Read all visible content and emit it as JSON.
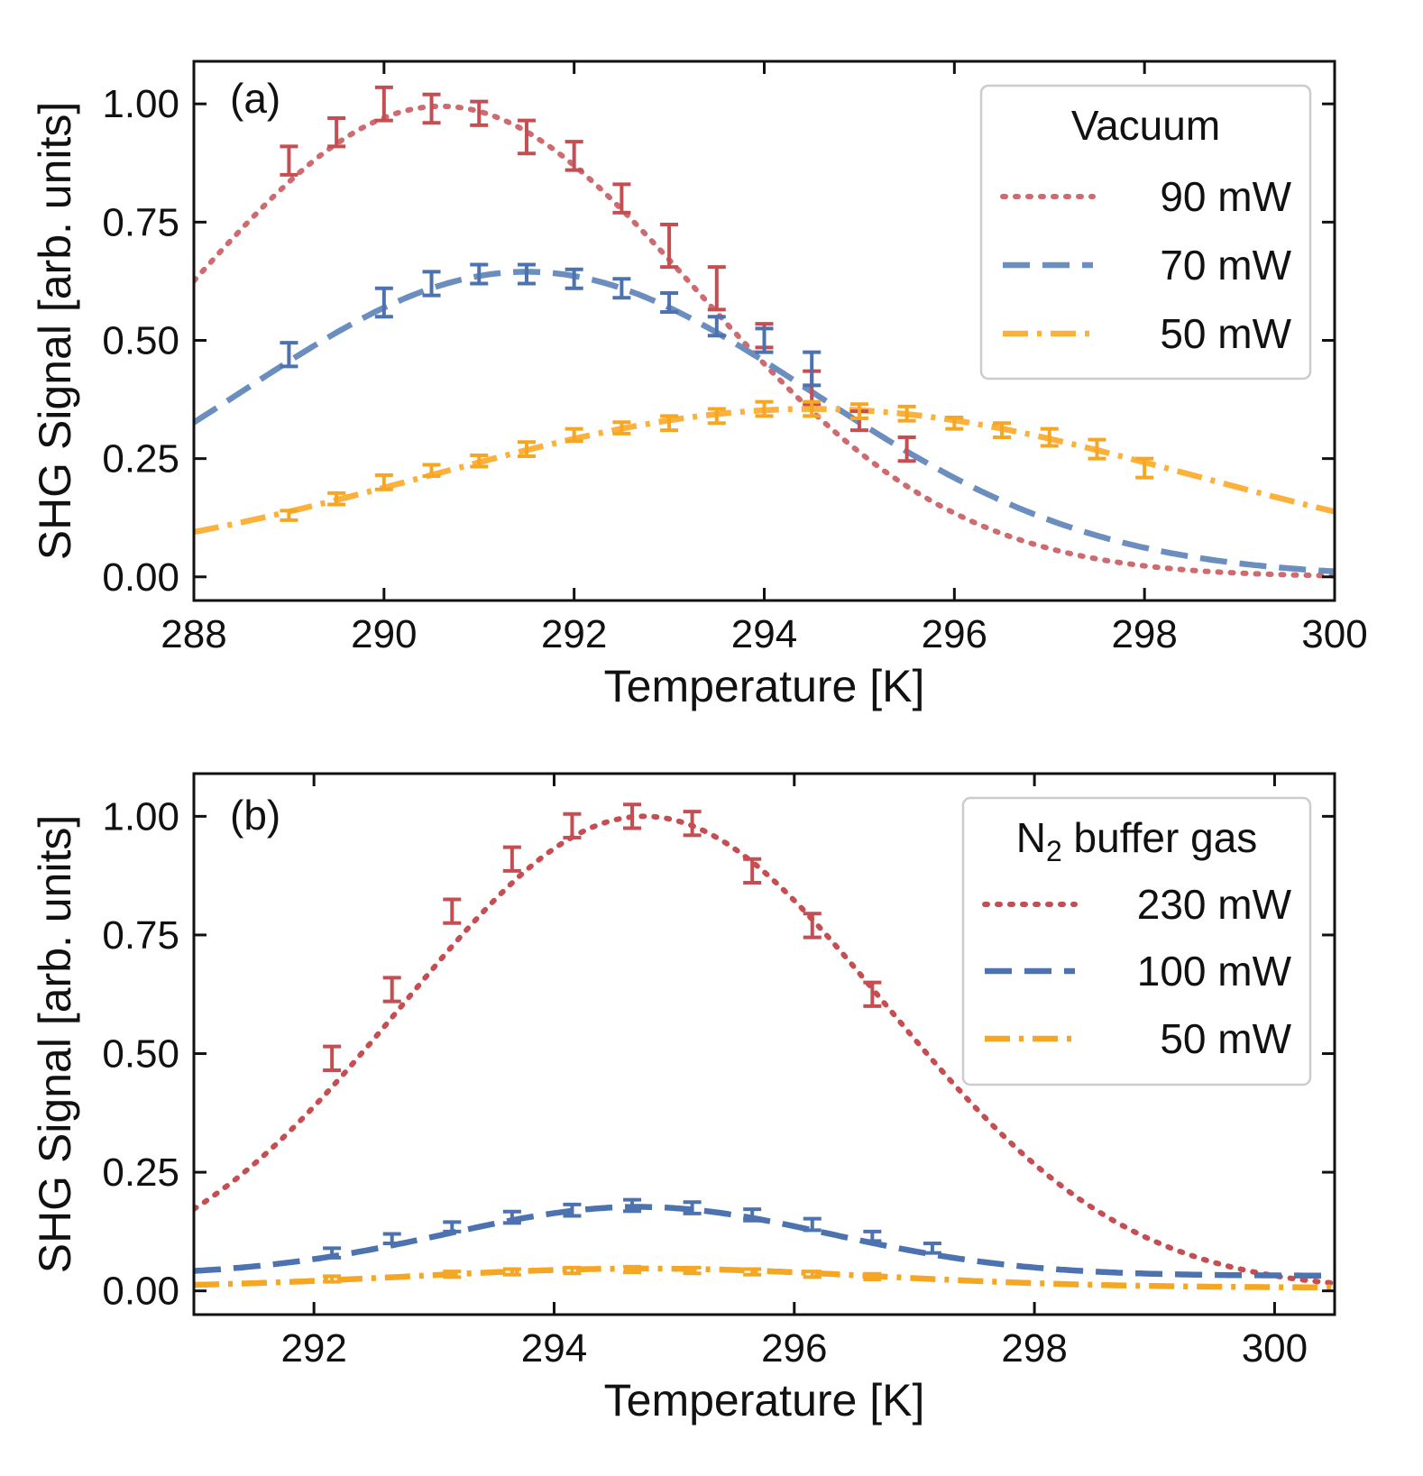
{
  "chart_data": [
    {
      "type": "line",
      "panel_label": "(a)",
      "xlabel": "Temperature [K]",
      "ylabel": "SHG Signal [arb. units]",
      "xlim": [
        288,
        300
      ],
      "ylim": [
        -0.05,
        1.09
      ],
      "xticks": [
        288,
        290,
        292,
        294,
        296,
        298,
        300
      ],
      "xtick_labels": [
        "288",
        "290",
        "292",
        "294",
        "296",
        "298",
        "300"
      ],
      "yticks": [
        0,
        0.25,
        0.5,
        0.75,
        1.0
      ],
      "ytick_labels": [
        "0.00",
        "0.25",
        "0.50",
        "0.75",
        "1.00"
      ],
      "grid": false,
      "legend": {
        "title": "Vacuum",
        "placement": "top-right"
      },
      "series": [
        {
          "name": "90 mW",
          "color": "#cd6b70",
          "style": "dotted",
          "point_color": "#c44e52",
          "fit": {
            "amplitude": 0.995,
            "center": 290.6,
            "sigma": 2.7,
            "offset": 0.0,
            "period": 17.3,
            "baseline_sine": 0.0
          },
          "points": [
            {
              "x": 289.0,
              "y": 0.88,
              "err": 0.03
            },
            {
              "x": 289.5,
              "y": 0.94,
              "err": 0.03
            },
            {
              "x": 290.0,
              "y": 1.0,
              "err": 0.035
            },
            {
              "x": 290.5,
              "y": 0.99,
              "err": 0.03
            },
            {
              "x": 291.0,
              "y": 0.98,
              "err": 0.025
            },
            {
              "x": 291.5,
              "y": 0.93,
              "err": 0.035
            },
            {
              "x": 292.0,
              "y": 0.89,
              "err": 0.03
            },
            {
              "x": 292.5,
              "y": 0.8,
              "err": 0.03
            },
            {
              "x": 293.0,
              "y": 0.7,
              "err": 0.045
            },
            {
              "x": 293.5,
              "y": 0.61,
              "err": 0.045
            },
            {
              "x": 294.0,
              "y": 0.51,
              "err": 0.025
            },
            {
              "x": 294.5,
              "y": 0.4,
              "err": 0.035
            },
            {
              "x": 295.0,
              "y": 0.33,
              "err": 0.02
            },
            {
              "x": 295.5,
              "y": 0.27,
              "err": 0.025
            }
          ]
        },
        {
          "name": "70 mW",
          "color": "#6c8ebf",
          "style": "dashed",
          "point_color": "#4c72b0",
          "fit": {
            "amplitude": 0.645,
            "center": 291.5,
            "sigma": 3.0,
            "offset": 0.0,
            "period": 17.3,
            "baseline_sine": 0.0
          },
          "points": [
            {
              "x": 289.0,
              "y": 0.47,
              "err": 0.025
            },
            {
              "x": 290.0,
              "y": 0.58,
              "err": 0.03
            },
            {
              "x": 290.5,
              "y": 0.62,
              "err": 0.025
            },
            {
              "x": 291.0,
              "y": 0.64,
              "err": 0.02
            },
            {
              "x": 291.5,
              "y": 0.64,
              "err": 0.02
            },
            {
              "x": 292.0,
              "y": 0.63,
              "err": 0.02
            },
            {
              "x": 292.5,
              "y": 0.61,
              "err": 0.02
            },
            {
              "x": 293.0,
              "y": 0.58,
              "err": 0.02
            },
            {
              "x": 293.5,
              "y": 0.53,
              "err": 0.02
            },
            {
              "x": 294.0,
              "y": 0.5,
              "err": 0.025
            },
            {
              "x": 294.5,
              "y": 0.44,
              "err": 0.035
            }
          ]
        },
        {
          "name": "50 mW",
          "color": "#fbb13c",
          "style": "dashdot",
          "point_color": "#f5a623",
          "fit": {
            "amplitude": 0.355,
            "center": 294.5,
            "sigma": 4.0,
            "offset": 0.0,
            "period": 17.3,
            "baseline_sine": 0.0
          },
          "points": [
            {
              "x": 289.0,
              "y": 0.13,
              "err": 0.01
            },
            {
              "x": 289.5,
              "y": 0.165,
              "err": 0.012
            },
            {
              "x": 290.0,
              "y": 0.2,
              "err": 0.015
            },
            {
              "x": 290.5,
              "y": 0.225,
              "err": 0.012
            },
            {
              "x": 291.0,
              "y": 0.245,
              "err": 0.012
            },
            {
              "x": 291.5,
              "y": 0.27,
              "err": 0.015
            },
            {
              "x": 292.0,
              "y": 0.3,
              "err": 0.013
            },
            {
              "x": 292.5,
              "y": 0.315,
              "err": 0.012
            },
            {
              "x": 293.0,
              "y": 0.325,
              "err": 0.015
            },
            {
              "x": 293.5,
              "y": 0.34,
              "err": 0.015
            },
            {
              "x": 294.0,
              "y": 0.355,
              "err": 0.015
            },
            {
              "x": 294.5,
              "y": 0.355,
              "err": 0.015
            },
            {
              "x": 295.0,
              "y": 0.35,
              "err": 0.015
            },
            {
              "x": 295.5,
              "y": 0.345,
              "err": 0.015
            },
            {
              "x": 296.0,
              "y": 0.325,
              "err": 0.012
            },
            {
              "x": 296.5,
              "y": 0.31,
              "err": 0.015
            },
            {
              "x": 297.0,
              "y": 0.295,
              "err": 0.018
            },
            {
              "x": 297.5,
              "y": 0.27,
              "err": 0.02
            },
            {
              "x": 298.0,
              "y": 0.23,
              "err": 0.02
            }
          ]
        }
      ]
    },
    {
      "type": "line",
      "panel_label": "(b)",
      "xlabel": "Temperature [K]",
      "ylabel": "SHG Signal [arb. units]",
      "xlim": [
        291.0,
        300.5
      ],
      "ylim": [
        -0.05,
        1.09
      ],
      "xticks": [
        292,
        294,
        296,
        298,
        300
      ],
      "xtick_labels": [
        "292",
        "294",
        "296",
        "298",
        "300"
      ],
      "yticks": [
        0,
        0.25,
        0.5,
        0.75,
        1.0
      ],
      "ytick_labels": [
        "0.00",
        "0.25",
        "0.50",
        "0.75",
        "1.00"
      ],
      "grid": false,
      "legend": {
        "title": "N",
        "title_subscript": "2",
        "title_suffix": " buffer gas",
        "placement": "top-right"
      },
      "series": [
        {
          "name": "230 mW",
          "color": "#c44e52",
          "style": "dotted",
          "point_color": "#c44e52",
          "fit": {
            "amplitude": 1.0,
            "center": 294.75,
            "sigma": 2.0,
            "offset": 0.0,
            "period": 12.0,
            "baseline_sine": 0.0
          },
          "points": [
            {
              "x": 292.15,
              "y": 0.49,
              "err": 0.025
            },
            {
              "x": 292.65,
              "y": 0.635,
              "err": 0.025
            },
            {
              "x": 293.15,
              "y": 0.8,
              "err": 0.025
            },
            {
              "x": 293.65,
              "y": 0.91,
              "err": 0.025
            },
            {
              "x": 294.15,
              "y": 0.98,
              "err": 0.025
            },
            {
              "x": 294.65,
              "y": 1.0,
              "err": 0.025
            },
            {
              "x": 295.15,
              "y": 0.985,
              "err": 0.025
            },
            {
              "x": 295.65,
              "y": 0.885,
              "err": 0.025
            },
            {
              "x": 296.15,
              "y": 0.77,
              "err": 0.025
            },
            {
              "x": 296.65,
              "y": 0.625,
              "err": 0.025
            }
          ]
        },
        {
          "name": "100 mW",
          "color": "#4c72b0",
          "style": "dashed",
          "point_color": "#4c72b0",
          "fit": {
            "amplitude": 0.145,
            "center": 294.7,
            "sigma": 1.6,
            "offset": 0.032,
            "period": 12.0,
            "baseline_sine": 0.0
          },
          "points": [
            {
              "x": 292.15,
              "y": 0.08,
              "err": 0.01
            },
            {
              "x": 292.65,
              "y": 0.11,
              "err": 0.01
            },
            {
              "x": 293.15,
              "y": 0.135,
              "err": 0.01
            },
            {
              "x": 293.65,
              "y": 0.155,
              "err": 0.012
            },
            {
              "x": 294.15,
              "y": 0.17,
              "err": 0.012
            },
            {
              "x": 294.65,
              "y": 0.18,
              "err": 0.012
            },
            {
              "x": 295.15,
              "y": 0.175,
              "err": 0.012
            },
            {
              "x": 295.65,
              "y": 0.16,
              "err": 0.012
            },
            {
              "x": 296.15,
              "y": 0.14,
              "err": 0.012
            },
            {
              "x": 296.65,
              "y": 0.115,
              "err": 0.01
            },
            {
              "x": 297.15,
              "y": 0.09,
              "err": 0.01
            }
          ]
        },
        {
          "name": "50 mW",
          "color": "#f5a623",
          "style": "dashdot",
          "point_color": "#f5a623",
          "fit": {
            "amplitude": 0.04,
            "center": 294.75,
            "sigma": 1.9,
            "offset": 0.007,
            "period": 12.0,
            "baseline_sine": 0.0
          },
          "points": [
            {
              "x": 292.15,
              "y": 0.025,
              "err": 0.006
            },
            {
              "x": 293.15,
              "y": 0.035,
              "err": 0.006
            },
            {
              "x": 293.65,
              "y": 0.04,
              "err": 0.006
            },
            {
              "x": 294.15,
              "y": 0.043,
              "err": 0.006
            },
            {
              "x": 294.65,
              "y": 0.045,
              "err": 0.006
            },
            {
              "x": 295.15,
              "y": 0.043,
              "err": 0.006
            },
            {
              "x": 295.65,
              "y": 0.04,
              "err": 0.006
            },
            {
              "x": 296.15,
              "y": 0.035,
              "err": 0.006
            },
            {
              "x": 296.65,
              "y": 0.03,
              "err": 0.006
            }
          ]
        }
      ]
    }
  ]
}
